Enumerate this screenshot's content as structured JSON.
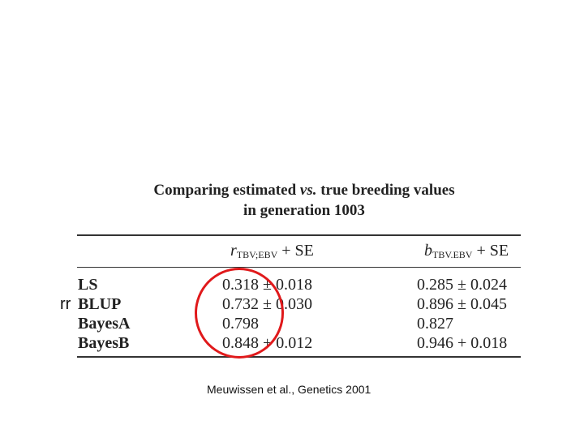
{
  "caption": {
    "line1_a": "Comparing estimated ",
    "line1_vs": "vs.",
    "line1_b": " true breeding values",
    "line2": "in generation 1003"
  },
  "headers": {
    "col1_symbol": "r",
    "col1_sub": "TBV;EBV",
    "col1_suffix": " + SE",
    "col2_symbol": "b",
    "col2_sub": "TBV.EBV",
    "col2_suffix": " + SE"
  },
  "rows": [
    {
      "method": "LS",
      "r": "0.318 ± 0.018",
      "b": "0.285 ± 0.024"
    },
    {
      "method": "BLUP",
      "r": "0.732 ± 0.030",
      "b": "0.896 ± 0.045"
    },
    {
      "method": "BayesA",
      "r": "0.798",
      "b": "0.827"
    },
    {
      "method": "BayesB",
      "r": "0.848 + 0.012",
      "b": "0.946 + 0.018"
    }
  ],
  "side_note": "rr",
  "reference": "Meuwissen et al., Genetics 2001",
  "highlight_color": "#e0191b"
}
